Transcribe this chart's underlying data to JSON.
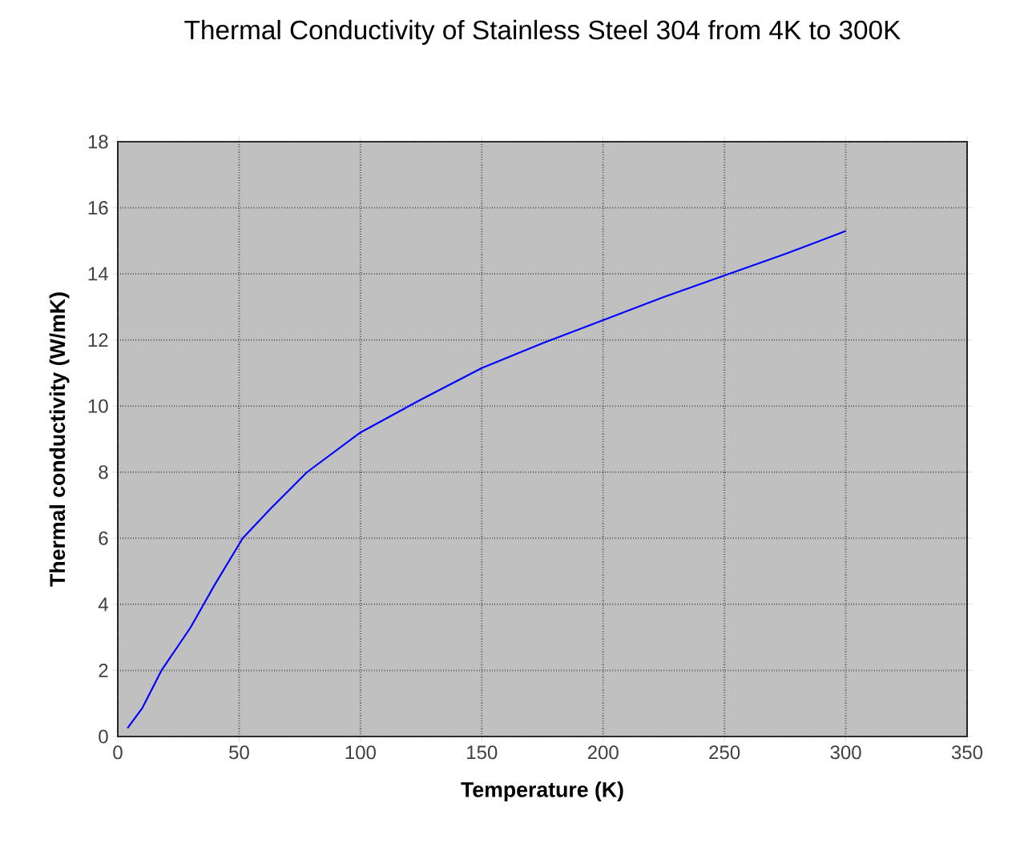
{
  "chart_data": {
    "type": "line",
    "title": "Thermal Conductivity of Stainless Steel 304 from 4K to 300K",
    "xlabel": "Temperature (K)",
    "ylabel": "Thermal conductivity (W/mK)",
    "x": [
      4,
      10,
      18,
      30,
      40,
      51.5,
      63,
      78,
      100,
      125,
      150,
      175,
      200,
      225,
      250,
      275,
      300
    ],
    "series": [
      {
        "color": "#0000ff",
        "values": [
          0.25,
          0.85,
          2.0,
          3.3,
          4.6,
          6.0,
          6.9,
          8.0,
          9.2,
          10.2,
          11.15,
          11.9,
          12.6,
          13.3,
          13.95,
          14.6,
          15.3
        ]
      }
    ],
    "xlim": [
      0,
      350
    ],
    "ylim": [
      0,
      18
    ],
    "xticks": [
      0,
      50,
      100,
      150,
      200,
      250,
      300,
      350
    ],
    "yticks": [
      0,
      2,
      4,
      6,
      8,
      10,
      12,
      14,
      16,
      18
    ],
    "grid": true,
    "legend": false,
    "marker": "none",
    "line_style": "solid"
  }
}
